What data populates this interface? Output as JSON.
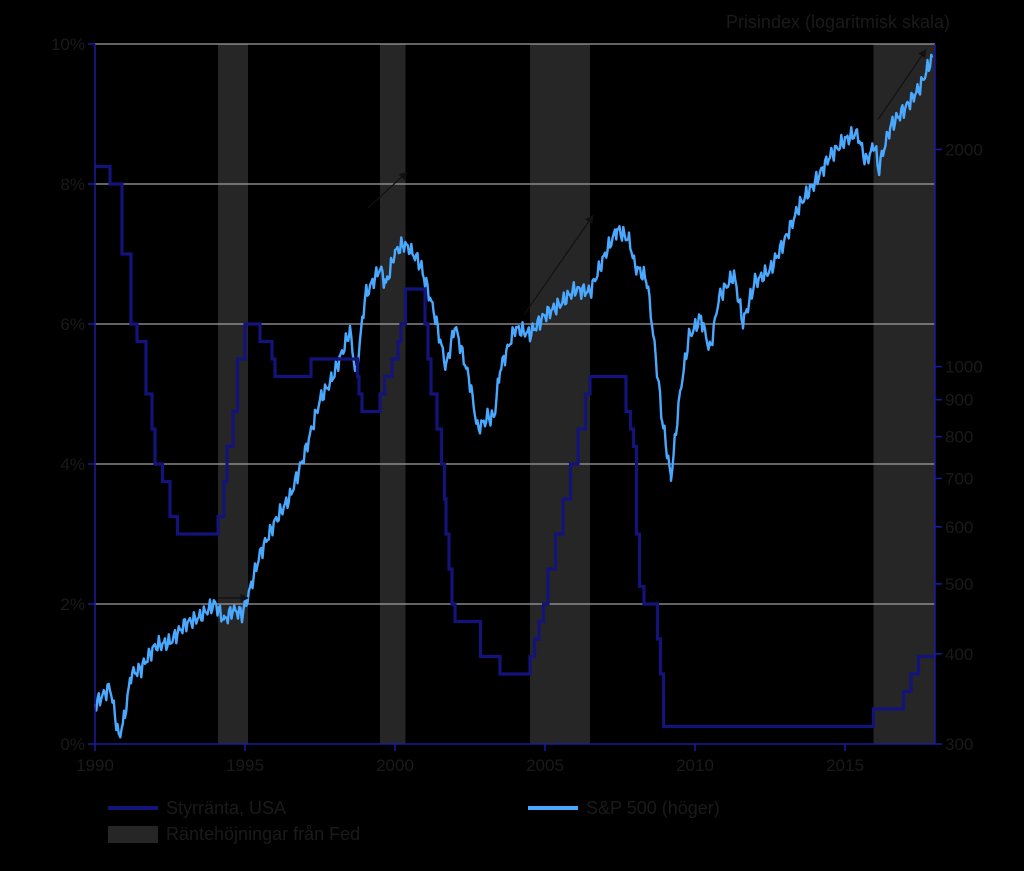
{
  "chart_data": {
    "type": "line",
    "x_axis": {
      "range": [
        1990,
        2018
      ],
      "ticks": [
        1990,
        1995,
        2000,
        2005,
        2010,
        2015
      ],
      "tick_labels": [
        "1990",
        "1995",
        "2000",
        "2005",
        "2010",
        "2015"
      ]
    },
    "y_left": {
      "range": [
        0,
        10
      ],
      "ticks": [
        0,
        2,
        4,
        6,
        8,
        10
      ],
      "tick_labels": [
        "0%",
        "2%",
        "4%",
        "6%",
        "8%",
        "10%"
      ]
    },
    "y_right": {
      "title": "Prisindex (logaritmisk skala)",
      "scale": "log",
      "range": [
        300,
        2800
      ],
      "ticks": [
        300,
        400,
        500,
        600,
        700,
        800,
        900,
        1000,
        2000
      ],
      "tick_labels": [
        "300",
        "400",
        "500",
        "600",
        "700",
        "800",
        "900",
        "1000",
        "2000"
      ]
    },
    "grid": "horizontal",
    "legend_position": "bottom",
    "colors": {
      "background": "#000000",
      "shading": "#262626",
      "gridline": "#a0a0a0",
      "axis": "#1a1aa0",
      "fed_rate": "#13137a",
      "sp500": "#4aa8ff",
      "text": "#1a1a1a",
      "arrow": "#111111"
    },
    "shaded_periods": [
      {
        "start": 1994.1,
        "end": 1995.1
      },
      {
        "start": 1999.5,
        "end": 2000.35
      },
      {
        "start": 2004.5,
        "end": 2006.5
      },
      {
        "start": 2015.95,
        "end": 2018.0
      }
    ],
    "series": [
      {
        "name": "Styrränta, USA",
        "color": "#13137a",
        "axis": "left",
        "step": true,
        "points": [
          [
            1990.0,
            8.25
          ],
          [
            1990.5,
            8.0
          ],
          [
            1990.9,
            7.0
          ],
          [
            1991.2,
            6.0
          ],
          [
            1991.4,
            5.75
          ],
          [
            1991.7,
            5.0
          ],
          [
            1991.9,
            4.5
          ],
          [
            1992.0,
            4.0
          ],
          [
            1992.25,
            3.75
          ],
          [
            1992.5,
            3.25
          ],
          [
            1992.75,
            3.0
          ],
          [
            1994.1,
            3.25
          ],
          [
            1994.3,
            3.75
          ],
          [
            1994.4,
            4.25
          ],
          [
            1994.6,
            4.75
          ],
          [
            1994.75,
            5.5
          ],
          [
            1995.0,
            6.0
          ],
          [
            1995.5,
            5.75
          ],
          [
            1995.9,
            5.5
          ],
          [
            1996.0,
            5.25
          ],
          [
            1997.2,
            5.5
          ],
          [
            1998.75,
            5.25
          ],
          [
            1998.8,
            5.0
          ],
          [
            1998.9,
            4.75
          ],
          [
            1999.5,
            5.0
          ],
          [
            1999.65,
            5.25
          ],
          [
            1999.9,
            5.5
          ],
          [
            2000.1,
            5.75
          ],
          [
            2000.2,
            6.0
          ],
          [
            2000.35,
            6.5
          ],
          [
            2001.0,
            6.0
          ],
          [
            2001.1,
            5.5
          ],
          [
            2001.2,
            5.0
          ],
          [
            2001.4,
            4.5
          ],
          [
            2001.55,
            4.0
          ],
          [
            2001.65,
            3.5
          ],
          [
            2001.7,
            3.0
          ],
          [
            2001.8,
            2.5
          ],
          [
            2001.9,
            2.0
          ],
          [
            2002.0,
            1.75
          ],
          [
            2002.85,
            1.25
          ],
          [
            2003.5,
            1.0
          ],
          [
            2004.5,
            1.25
          ],
          [
            2004.65,
            1.5
          ],
          [
            2004.8,
            1.75
          ],
          [
            2004.95,
            2.0
          ],
          [
            2005.1,
            2.5
          ],
          [
            2005.35,
            3.0
          ],
          [
            2005.6,
            3.5
          ],
          [
            2005.85,
            4.0
          ],
          [
            2006.1,
            4.5
          ],
          [
            2006.35,
            5.0
          ],
          [
            2006.5,
            5.25
          ],
          [
            2007.7,
            4.75
          ],
          [
            2007.85,
            4.5
          ],
          [
            2007.95,
            4.25
          ],
          [
            2008.05,
            3.0
          ],
          [
            2008.15,
            2.25
          ],
          [
            2008.3,
            2.0
          ],
          [
            2008.75,
            1.5
          ],
          [
            2008.85,
            1.0
          ],
          [
            2008.95,
            0.25
          ],
          [
            2015.95,
            0.5
          ],
          [
            2016.95,
            0.75
          ],
          [
            2017.2,
            1.0
          ],
          [
            2017.45,
            1.25
          ],
          [
            2018.0,
            1.25
          ]
        ]
      },
      {
        "name": "S&P 500 (höger)",
        "color": "#4aa8ff",
        "axis": "right",
        "step": false,
        "points": [
          [
            1990.0,
            340
          ],
          [
            1990.5,
            360
          ],
          [
            1990.8,
            306
          ],
          [
            1991.0,
            330
          ],
          [
            1991.2,
            375
          ],
          [
            1991.5,
            380
          ],
          [
            1992.0,
            410
          ],
          [
            1992.5,
            415
          ],
          [
            1993.0,
            440
          ],
          [
            1993.5,
            450
          ],
          [
            1994.0,
            470
          ],
          [
            1994.3,
            445
          ],
          [
            1994.6,
            460
          ],
          [
            1994.9,
            455
          ],
          [
            1995.0,
            465
          ],
          [
            1995.5,
            550
          ],
          [
            1996.0,
            610
          ],
          [
            1996.5,
            660
          ],
          [
            1997.0,
            760
          ],
          [
            1997.5,
            900
          ],
          [
            1997.9,
            960
          ],
          [
            1998.5,
            1120
          ],
          [
            1998.7,
            970
          ],
          [
            1999.0,
            1250
          ],
          [
            1999.5,
            1370
          ],
          [
            1999.7,
            1300
          ],
          [
            2000.0,
            1440
          ],
          [
            2000.3,
            1480
          ],
          [
            2000.5,
            1450
          ],
          [
            2000.8,
            1400
          ],
          [
            2001.0,
            1320
          ],
          [
            2001.3,
            1190
          ],
          [
            2001.7,
            1000
          ],
          [
            2002.0,
            1140
          ],
          [
            2002.5,
            950
          ],
          [
            2002.75,
            820
          ],
          [
            2003.1,
            850
          ],
          [
            2003.3,
            850
          ],
          [
            2003.5,
            990
          ],
          [
            2004.0,
            1130
          ],
          [
            2004.5,
            1110
          ],
          [
            2005.0,
            1180
          ],
          [
            2005.5,
            1220
          ],
          [
            2006.0,
            1280
          ],
          [
            2006.5,
            1270
          ],
          [
            2007.0,
            1430
          ],
          [
            2007.4,
            1550
          ],
          [
            2007.8,
            1500
          ],
          [
            2008.0,
            1380
          ],
          [
            2008.4,
            1320
          ],
          [
            2008.75,
            980
          ],
          [
            2008.9,
            850
          ],
          [
            2009.2,
            700
          ],
          [
            2009.5,
            920
          ],
          [
            2009.8,
            1100
          ],
          [
            2010.2,
            1170
          ],
          [
            2010.5,
            1050
          ],
          [
            2010.8,
            1250
          ],
          [
            2011.3,
            1340
          ],
          [
            2011.6,
            1150
          ],
          [
            2012.0,
            1310
          ],
          [
            2012.5,
            1360
          ],
          [
            2013.0,
            1500
          ],
          [
            2013.5,
            1680
          ],
          [
            2014.0,
            1800
          ],
          [
            2014.5,
            1960
          ],
          [
            2015.0,
            2060
          ],
          [
            2015.4,
            2110
          ],
          [
            2015.7,
            1920
          ],
          [
            2016.0,
            2040
          ],
          [
            2016.1,
            1870
          ],
          [
            2016.5,
            2150
          ],
          [
            2017.0,
            2280
          ],
          [
            2017.5,
            2440
          ],
          [
            2017.9,
            2680
          ]
        ]
      }
    ],
    "arrows": [
      {
        "from": [
          1999.1,
          1660
        ],
        "to": [
          2000.4,
          1860
        ]
      },
      {
        "from": [
          2004.3,
          1180
        ],
        "to": [
          2006.6,
          1620
        ]
      },
      {
        "from": [
          1994.1,
          478
        ],
        "to": [
          1995.1,
          478
        ]
      },
      {
        "from": [
          2016.1,
          2200
        ],
        "to": [
          2017.7,
          2750
        ]
      }
    ],
    "legend": [
      {
        "label": "Styrränta, USA",
        "symbol": "line",
        "color": "#13137a"
      },
      {
        "label": "S&P 500 (höger)",
        "symbol": "line",
        "color": "#4aa8ff"
      },
      {
        "label": "Räntehöjningar från Fed",
        "symbol": "box",
        "color": "#262626"
      }
    ]
  }
}
